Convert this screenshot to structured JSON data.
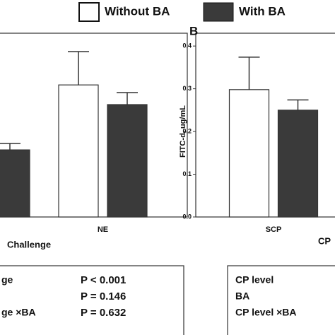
{
  "chart_data": [
    {
      "type": "bar",
      "categories": [
        null,
        "NE"
      ],
      "xlabel": "Challenge",
      "series": [
        {
          "name": "Without BA",
          "color": "#ffffff",
          "values": [
            null,
            0.309
          ],
          "errors": [
            null,
            0.078
          ]
        },
        {
          "name": "With BA",
          "color": "#3a3a3a",
          "values": [
            0.157,
            0.263
          ],
          "errors": [
            0.015,
            0.028
          ]
        }
      ],
      "ylim": [
        0,
        0.43
      ]
    },
    {
      "type": "bar",
      "panel": "B",
      "categories": [
        "SCP",
        "CP"
      ],
      "ylabel": "FITC-d, ug/mL",
      "series": [
        {
          "name": "Without BA",
          "color": "#ffffff",
          "values": [
            0.298,
            null
          ],
          "errors": [
            0.076,
            null
          ]
        },
        {
          "name": "With BA",
          "color": "#3a3a3a",
          "values": [
            0.25,
            null
          ],
          "errors": [
            0.024,
            null
          ]
        }
      ],
      "ylim": [
        0,
        0.43
      ],
      "yticks": [
        {
          "value": 0,
          "label": "0.0"
        },
        0.1,
        0.2,
        0.3,
        0.4
      ]
    }
  ],
  "stats_left": [
    {
      "term": "ge",
      "p": "P < 0.001"
    },
    {
      "term": "",
      "p": "P = 0.146"
    },
    {
      "term": "ge ×BA",
      "p": "P = 0.632"
    }
  ],
  "stats_right": [
    "CP level",
    "BA",
    "CP level ×BA"
  ]
}
